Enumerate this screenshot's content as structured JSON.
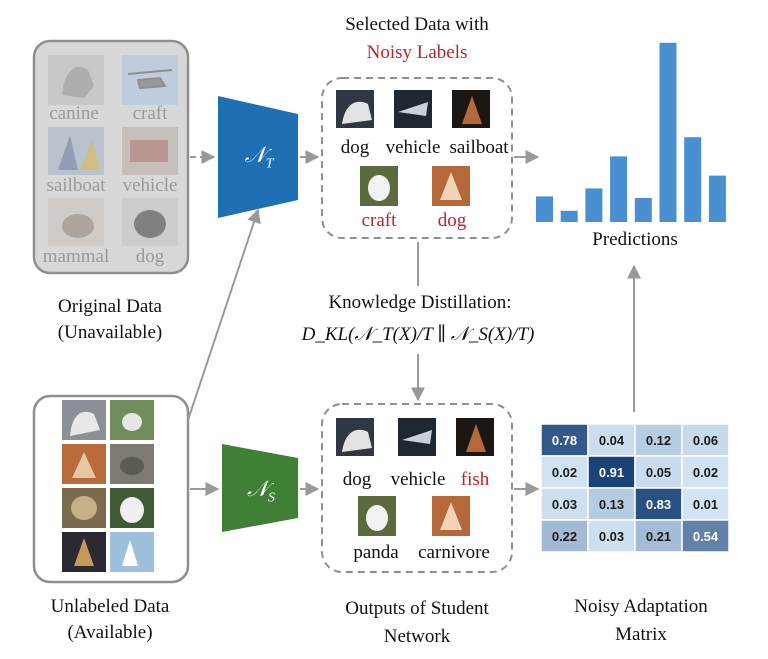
{
  "original": {
    "thumbs": [
      {
        "label": "canine",
        "icon": "husky-dog-image"
      },
      {
        "label": "craft",
        "icon": "helicopter-image"
      },
      {
        "label": "sailboat",
        "icon": "sailboats-image"
      },
      {
        "label": "vehicle",
        "icon": "truck-image"
      },
      {
        "label": "mammal",
        "icon": "squirrel-image"
      },
      {
        "label": "dog",
        "icon": "black-puppy-image"
      }
    ],
    "caption_line1": "Original Data",
    "caption_line2": "(Unavailable)"
  },
  "unlabeled": {
    "caption_line1": "Unlabeled Data",
    "caption_line2": "(Available)"
  },
  "teacher": {
    "symbol": "𝒩",
    "sub": "T",
    "color": "#1f6fb5"
  },
  "student": {
    "symbol": "𝒩",
    "sub": "S",
    "color": "#3f7f36"
  },
  "selected": {
    "title_line1": "Selected Data with",
    "title_line2": "Noisy Labels",
    "labels": [
      {
        "text": "dog",
        "noisy": false
      },
      {
        "text": "vehicle",
        "noisy": false
      },
      {
        "text": "sailboat",
        "noisy": false
      },
      {
        "text": "craft",
        "noisy": true
      },
      {
        "text": "dog",
        "noisy": true
      }
    ]
  },
  "student_outputs": {
    "caption_line1": "Outputs of Student",
    "caption_line2": "Network",
    "labels": [
      {
        "text": "dog",
        "noisy": false
      },
      {
        "text": "vehicle",
        "noisy": false
      },
      {
        "text": "fish",
        "noisy": true
      },
      {
        "text": "panda",
        "noisy": false
      },
      {
        "text": "carnivore",
        "noisy": false
      }
    ]
  },
  "distillation": {
    "title": "Knowledge Distillation:",
    "formula": "D_KL(𝒩_T(X)/T ∥ 𝒩_S(X)/T)"
  },
  "predictions": {
    "label": "Predictions",
    "bar_color": "#4a90d0"
  },
  "chart_data": {
    "type": "bar",
    "values": [
      1.6,
      0.7,
      2.1,
      4.1,
      1.5,
      11.2,
      5.3,
      2.9
    ],
    "ylim": [
      0,
      11.5
    ],
    "xlabel": "Predictions"
  },
  "matrix": {
    "caption_line1": "Noisy Adaptation",
    "caption_line2": "Matrix",
    "rows": [
      [
        "0.78",
        "0.04",
        "0.12",
        "0.06"
      ],
      [
        "0.02",
        "0.91",
        "0.05",
        "0.02"
      ],
      [
        "0.03",
        "0.13",
        "0.83",
        "0.01"
      ],
      [
        "0.22",
        "0.03",
        "0.21",
        "0.54"
      ]
    ]
  }
}
